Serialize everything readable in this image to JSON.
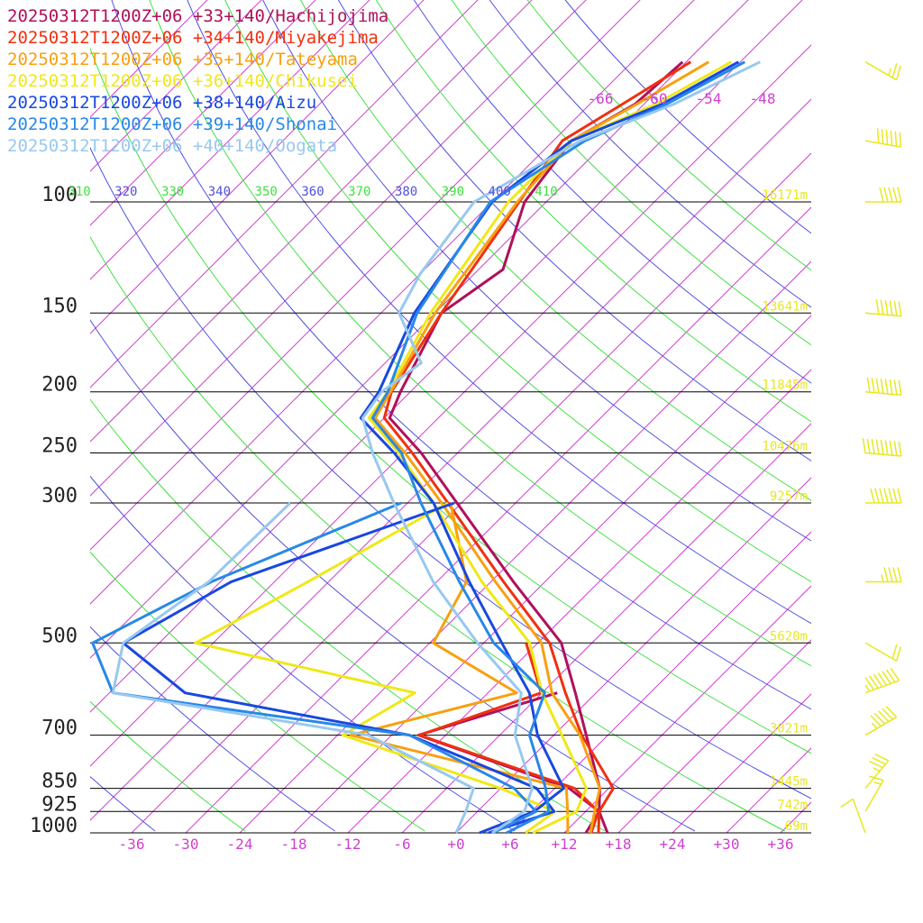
{
  "chart_data": {
    "type": "line",
    "diagram": "skew-T log-p sounding",
    "pressure_levels": [
      100,
      150,
      200,
      250,
      300,
      500,
      700,
      850,
      925,
      1000
    ],
    "pressure_labels": [
      "100",
      "150",
      "200",
      "250",
      "300",
      "500",
      "700",
      "850",
      "925",
      "1000"
    ],
    "height_labels": [
      {
        "p": 100,
        "text": "16171m"
      },
      {
        "p": 150,
        "text": "13641m"
      },
      {
        "p": 200,
        "text": "11845m"
      },
      {
        "p": 250,
        "text": "10476m"
      },
      {
        "p": 300,
        "text": "9257m"
      },
      {
        "p": 500,
        "text": "5620m"
      },
      {
        "p": 700,
        "text": "3021m"
      },
      {
        "p": 850,
        "text": "1445m"
      },
      {
        "p": 925,
        "text": "742m"
      },
      {
        "p": 1000,
        "text": "69m"
      }
    ],
    "temperature_ticks": [
      -36,
      -30,
      -24,
      -18,
      -12,
      -6,
      0,
      6,
      12,
      18,
      24,
      30,
      36
    ],
    "temperature_tick_labels": [
      "-36",
      "-30",
      "-24",
      "-18",
      "-12",
      "-6",
      "+0",
      "+6",
      "+12",
      "+18",
      "+24",
      "+30",
      "+36"
    ],
    "top_isotherm_labels": [
      {
        "t": -66,
        "text": "-66"
      },
      {
        "t": -60,
        "text": "-60"
      },
      {
        "t": -54,
        "text": "-54"
      },
      {
        "t": -48,
        "text": "-48"
      }
    ],
    "theta_labels": [
      "310",
      "320",
      "330",
      "340",
      "350",
      "360",
      "370",
      "380",
      "390",
      "400",
      "410"
    ],
    "xlim": [
      -38,
      40
    ],
    "ylim": [
      1000,
      100
    ],
    "series": [
      {
        "name": "20250312T1200Z+06 +33+140/Hachijojima",
        "color": "#b0105a",
        "temperature": [
          [
            1000,
            16.8
          ],
          [
            925,
            13.5
          ],
          [
            850,
            11
          ],
          [
            700,
            3.6
          ],
          [
            600,
            -2.3
          ],
          [
            500,
            -9.4
          ],
          [
            400,
            -21.5
          ],
          [
            300,
            -36.5
          ],
          [
            250,
            -46
          ],
          [
            220,
            -53.4
          ],
          [
            200,
            -55.1
          ],
          [
            150,
            -59.3
          ],
          [
            128,
            -57.3
          ],
          [
            100,
            -62.4
          ],
          [
            80,
            -64
          ],
          [
            70,
            -61
          ],
          [
            60,
            -60.4
          ]
        ],
        "dewpoint": [
          [
            1000,
            14.4
          ],
          [
            925,
            13.5
          ],
          [
            850,
            7.6
          ],
          [
            700,
            -15
          ],
          [
            600,
            -4.3
          ]
        ]
      },
      {
        "name": "20250312T1200Z+06 +34+140/Miyakejima",
        "color": "#f03010",
        "temperature": [
          [
            1000,
            15.8
          ],
          [
            925,
            13.5
          ],
          [
            850,
            12.5
          ],
          [
            700,
            3.1
          ],
          [
            600,
            -3.4
          ],
          [
            500,
            -10.7
          ],
          [
            400,
            -22.6
          ],
          [
            300,
            -37.5
          ],
          [
            250,
            -47
          ],
          [
            220,
            -54
          ],
          [
            200,
            -56.1
          ],
          [
            150,
            -59.3
          ],
          [
            100,
            -63
          ],
          [
            80,
            -65
          ],
          [
            70,
            -62.4
          ],
          [
            60,
            -59.5
          ]
        ],
        "dewpoint": [
          [
            1000,
            15
          ],
          [
            925,
            13.4
          ],
          [
            850,
            8.2
          ],
          [
            700,
            -14.9
          ],
          [
            600,
            -6.1
          ],
          [
            500,
            -13.3
          ]
        ]
      },
      {
        "name": "20250312T1200Z+06 +35+140/Tateyama",
        "color": "#f8a010",
        "temperature": [
          [
            1000,
            14.9
          ],
          [
            925,
            13
          ],
          [
            850,
            11
          ],
          [
            700,
            2.9
          ],
          [
            600,
            -4.9
          ],
          [
            500,
            -11.6
          ],
          [
            400,
            -23.5
          ],
          [
            300,
            -38.2
          ],
          [
            250,
            -47.8
          ],
          [
            220,
            -55
          ],
          [
            200,
            -56.2
          ],
          [
            150,
            -60
          ],
          [
            100,
            -63.2
          ],
          [
            80,
            -64
          ],
          [
            70,
            -60.8
          ],
          [
            60,
            -57.5
          ]
        ],
        "dewpoint": [
          [
            1000,
            12.4
          ],
          [
            925,
            10
          ],
          [
            850,
            7.3
          ],
          [
            700,
            -22.5
          ],
          [
            600,
            -8.8
          ],
          [
            500,
            -23.6
          ],
          [
            400,
            -26.7
          ],
          [
            300,
            -37.2
          ]
        ]
      },
      {
        "name": "20250312T1200Z+06 +36+140/Chikusei",
        "color": "#f0e818",
        "temperature": [
          [
            1000,
            8.5
          ],
          [
            925,
            11
          ],
          [
            850,
            9.5
          ],
          [
            700,
            0.9
          ],
          [
            600,
            -6
          ],
          [
            500,
            -12.9
          ],
          [
            400,
            -25
          ],
          [
            300,
            -39.1
          ],
          [
            250,
            -48.5
          ],
          [
            220,
            -55.7
          ],
          [
            200,
            -56.5
          ],
          [
            150,
            -60.5
          ],
          [
            100,
            -64.2
          ],
          [
            80,
            -64
          ],
          [
            70,
            -58.7
          ],
          [
            60,
            -55
          ]
        ],
        "dewpoint": [
          [
            1000,
            7.7
          ],
          [
            925,
            8.6
          ],
          [
            850,
            0
          ],
          [
            700,
            -23.4
          ],
          [
            600,
            -20.1
          ],
          [
            500,
            -50
          ],
          [
            400,
            -44.3
          ],
          [
            300,
            -37.5
          ]
        ]
      },
      {
        "name": "20250312T1200Z+06 +38+140/Aizu",
        "color": "#1848e0",
        "temperature": [
          [
            1000,
            2.6
          ],
          [
            925,
            6.3
          ],
          [
            850,
            7
          ],
          [
            700,
            -1.8
          ],
          [
            600,
            -7.4
          ],
          [
            500,
            -16
          ],
          [
            400,
            -26.4
          ],
          [
            300,
            -39.1
          ],
          [
            250,
            -49
          ],
          [
            220,
            -56.6
          ],
          [
            200,
            -57.5
          ],
          [
            150,
            -62.3
          ],
          [
            100,
            -66
          ],
          [
            80,
            -64
          ],
          [
            70,
            -58
          ],
          [
            60,
            -54.2
          ]
        ],
        "dewpoint": [
          [
            1000,
            3.6
          ],
          [
            925,
            8.5
          ],
          [
            850,
            4
          ],
          [
            700,
            -16
          ],
          [
            600,
            -45.6
          ],
          [
            500,
            -58
          ],
          [
            400,
            -52.8
          ],
          [
            300,
            -36.8
          ]
        ]
      },
      {
        "name": "20250312T1200Z+06 +39+140/Shonai",
        "color": "#2888e8",
        "temperature": [
          [
            1000,
            5.6
          ],
          [
            925,
            7.9
          ],
          [
            850,
            5
          ],
          [
            700,
            -2.7
          ],
          [
            600,
            -5.7
          ],
          [
            500,
            -16.9
          ],
          [
            400,
            -27.5
          ],
          [
            300,
            -40.5
          ],
          [
            250,
            -48.2
          ],
          [
            220,
            -55.3
          ],
          [
            200,
            -56.5
          ],
          [
            150,
            -62
          ],
          [
            100,
            -66.2
          ],
          [
            80,
            -62.5
          ],
          [
            70,
            -57.5
          ],
          [
            60,
            -53.5
          ]
        ],
        "dewpoint": [
          [
            1000,
            4.1
          ],
          [
            925,
            6.5
          ],
          [
            850,
            1.5
          ],
          [
            700,
            -16
          ],
          [
            600,
            -53.6
          ],
          [
            500,
            -61.4
          ],
          [
            400,
            -55
          ],
          [
            300,
            -42.7
          ]
        ]
      },
      {
        "name": "20250312T1200Z+06 +40+140/Oogata",
        "color": "#98c8f0",
        "temperature": [
          [
            1000,
            4
          ],
          [
            925,
            5.2
          ],
          [
            850,
            3.5
          ],
          [
            700,
            -4.3
          ],
          [
            600,
            -8.3
          ],
          [
            500,
            -18.7
          ],
          [
            400,
            -30.4
          ],
          [
            300,
            -43.5
          ],
          [
            250,
            -51.4
          ],
          [
            220,
            -56.4
          ],
          [
            200,
            -57.2
          ],
          [
            180,
            -56
          ],
          [
            150,
            -64
          ],
          [
            130,
            -66
          ],
          [
            100,
            -68
          ],
          [
            80,
            -63
          ],
          [
            70,
            -56.7
          ],
          [
            60,
            -51.8
          ]
        ],
        "dewpoint": [
          [
            1000,
            0
          ],
          [
            925,
            -1.3
          ],
          [
            850,
            -3
          ],
          [
            700,
            -20.6
          ],
          [
            600,
            -53.6
          ],
          [
            500,
            -58
          ],
          [
            400,
            -55.3
          ],
          [
            300,
            -55
          ]
        ]
      }
    ],
    "wind_barbs": [
      {
        "p": 60,
        "speed_kt": 25,
        "dir": 300
      },
      {
        "p": 80,
        "speed_kt": 60,
        "dir": 280
      },
      {
        "p": 100,
        "speed_kt": 50,
        "dir": 270
      },
      {
        "p": 150,
        "speed_kt": 60,
        "dir": 275
      },
      {
        "p": 200,
        "speed_kt": 80,
        "dir": 275
      },
      {
        "p": 250,
        "speed_kt": 90,
        "dir": 275
      },
      {
        "p": 300,
        "speed_kt": 70,
        "dir": 270
      },
      {
        "p": 400,
        "speed_kt": 45,
        "dir": 270
      },
      {
        "p": 500,
        "speed_kt": 20,
        "dir": 300
      },
      {
        "p": 600,
        "speed_kt": 75,
        "dir": 250
      },
      {
        "p": 700,
        "speed_kt": 55,
        "dir": 240
      },
      {
        "p": 850,
        "speed_kt": 35,
        "dir": 220
      },
      {
        "p": 925,
        "speed_kt": 15,
        "dir": 210
      },
      {
        "p": 1000,
        "speed_kt": 10,
        "dir": 160
      }
    ],
    "colors": {
      "isobar": "#000000",
      "isotherm": "#d040d0",
      "dry_adiabat_a": "#5050e0",
      "dry_adiabat_b": "#40e040",
      "height_text": "#e8e820",
      "barbs": "#e8e820"
    }
  }
}
